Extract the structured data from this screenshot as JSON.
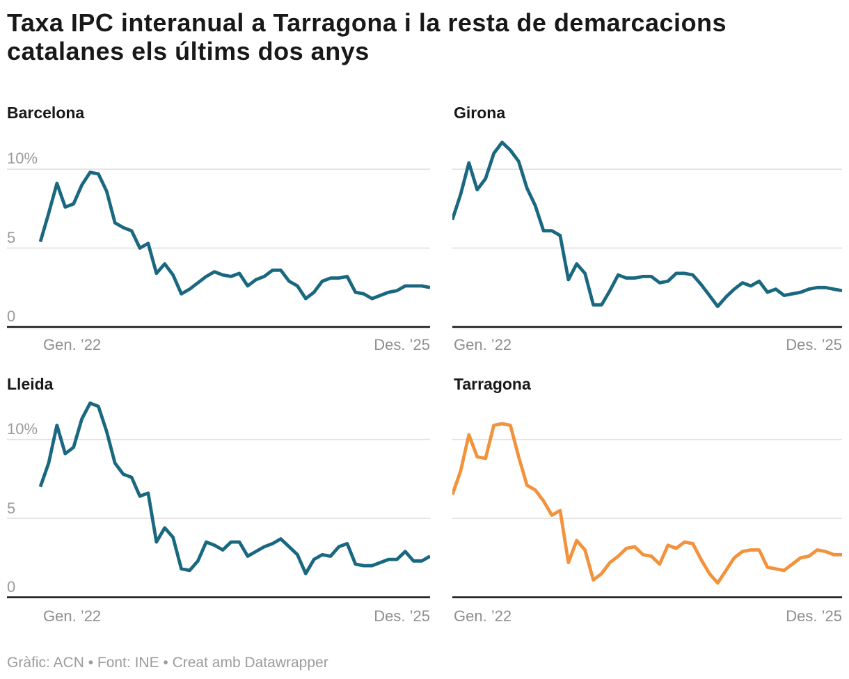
{
  "title": "Taxa IPC interanual a Tarragona i la resta de demarcacions catalanes els últims dos anys",
  "footer": "Gràfic: ACN • Font: INE • Creat amb Datawrapper",
  "axis": {
    "x_first": "Gen. ’22",
    "x_last": "Des. ’25",
    "y_ticks": [
      {
        "value": 0,
        "label": "0"
      },
      {
        "value": 5,
        "label": "5"
      },
      {
        "value": 10,
        "label": "10%"
      }
    ]
  },
  "chart_data": [
    {
      "type": "line",
      "title": "Barcelona",
      "color": "#1a6880",
      "unit": "%",
      "x_range": [
        "Gen. 2022",
        "Des. 2025"
      ],
      "ylim": [
        0,
        12.5
      ],
      "gridlines": [
        0,
        5,
        10
      ],
      "values": [
        5.4,
        7.2,
        9.1,
        7.6,
        7.8,
        9.0,
        9.8,
        9.7,
        8.6,
        6.6,
        6.3,
        6.1,
        5.0,
        5.3,
        3.4,
        4.0,
        3.3,
        2.1,
        2.4,
        2.8,
        3.2,
        3.5,
        3.3,
        3.2,
        3.4,
        2.6,
        3.0,
        3.2,
        3.6,
        3.6,
        2.9,
        2.6,
        1.8,
        2.2,
        2.9,
        3.1,
        3.1,
        3.2,
        2.2,
        2.1,
        1.8,
        2.0,
        2.2,
        2.3,
        2.6,
        2.6,
        2.6,
        2.5
      ]
    },
    {
      "type": "line",
      "title": "Girona",
      "color": "#1a6880",
      "unit": "%",
      "x_range": [
        "Gen. 2022",
        "Des. 2025"
      ],
      "ylim": [
        0,
        12.5
      ],
      "gridlines": [
        0,
        5,
        10
      ],
      "values": [
        6.8,
        8.4,
        10.4,
        8.7,
        9.4,
        11.0,
        11.7,
        11.2,
        10.5,
        8.8,
        7.7,
        6.1,
        6.1,
        5.8,
        3.0,
        4.0,
        3.4,
        1.4,
        1.4,
        2.3,
        3.3,
        3.1,
        3.1,
        3.2,
        3.2,
        2.8,
        2.9,
        3.4,
        3.4,
        3.3,
        2.7,
        2.0,
        1.3,
        1.9,
        2.4,
        2.8,
        2.6,
        2.9,
        2.2,
        2.4,
        2.0,
        2.1,
        2.2,
        2.4,
        2.5,
        2.5,
        2.4,
        2.3
      ]
    },
    {
      "type": "line",
      "title": "Lleida",
      "color": "#1a6880",
      "unit": "%",
      "x_range": [
        "Gen. 2022",
        "Des. 2025"
      ],
      "ylim": [
        0,
        12.5
      ],
      "gridlines": [
        0,
        5,
        10
      ],
      "values": [
        7.0,
        8.5,
        10.9,
        9.1,
        9.5,
        11.3,
        12.3,
        12.1,
        10.5,
        8.5,
        7.8,
        7.6,
        6.4,
        6.6,
        3.5,
        4.4,
        3.8,
        1.8,
        1.7,
        2.3,
        3.5,
        3.3,
        3.0,
        3.5,
        3.5,
        2.6,
        2.9,
        3.2,
        3.4,
        3.7,
        3.2,
        2.7,
        1.5,
        2.4,
        2.7,
        2.6,
        3.2,
        3.4,
        2.1,
        2.0,
        2.0,
        2.2,
        2.4,
        2.4,
        2.9,
        2.3,
        2.3,
        2.6
      ]
    },
    {
      "type": "line",
      "title": "Tarragona",
      "color": "#f3923c",
      "unit": "%",
      "x_range": [
        "Gen. 2022",
        "Des. 2025"
      ],
      "ylim": [
        0,
        12.5
      ],
      "gridlines": [
        0,
        5,
        10
      ],
      "values": [
        6.5,
        8.0,
        10.3,
        8.9,
        8.8,
        10.9,
        11.0,
        10.9,
        8.9,
        7.1,
        6.8,
        6.1,
        5.2,
        5.5,
        2.2,
        3.6,
        3.0,
        1.1,
        1.5,
        2.2,
        2.6,
        3.1,
        3.2,
        2.7,
        2.6,
        2.1,
        3.3,
        3.1,
        3.5,
        3.4,
        2.4,
        1.5,
        0.9,
        1.7,
        2.5,
        2.9,
        3.0,
        3.0,
        1.9,
        1.8,
        1.7,
        2.1,
        2.5,
        2.6,
        3.0,
        2.9,
        2.7,
        2.7
      ]
    }
  ]
}
